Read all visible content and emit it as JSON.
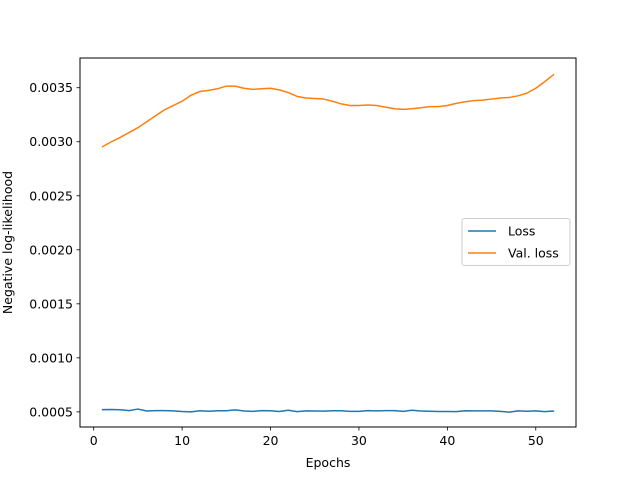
{
  "chart_data": {
    "type": "line",
    "title": "",
    "xlabel": "Epochs",
    "ylabel": "Negative log-likelihood",
    "xlim": [
      -1.55,
      54.55
    ],
    "ylim": [
      0.00036,
      0.003775
    ],
    "xticks": [
      0,
      10,
      20,
      30,
      40,
      50
    ],
    "yticks": [
      0.0005,
      0.001,
      0.0015,
      0.002,
      0.0025,
      0.003,
      0.0035
    ],
    "ytick_labels": [
      "0.0005",
      "0.0010",
      "0.0015",
      "0.0020",
      "0.0025",
      "0.0030",
      "0.0035"
    ],
    "grid": false,
    "legend_position": "center-right",
    "x": [
      1,
      2,
      3,
      4,
      5,
      6,
      7,
      8,
      9,
      10,
      11,
      12,
      13,
      14,
      15,
      16,
      17,
      18,
      19,
      20,
      21,
      22,
      23,
      24,
      25,
      26,
      27,
      28,
      29,
      30,
      31,
      32,
      33,
      34,
      35,
      36,
      37,
      38,
      39,
      40,
      41,
      42,
      43,
      44,
      45,
      46,
      47,
      48,
      49,
      50,
      51,
      52
    ],
    "series": [
      {
        "name": "Loss",
        "color": "#1f77b4",
        "values": [
          0.000521,
          0.000522,
          0.00052,
          0.000512,
          0.000526,
          0.000508,
          0.000512,
          0.000511,
          0.000509,
          0.000503,
          0.0005,
          0.00051,
          0.000506,
          0.00051,
          0.00051,
          0.000518,
          0.000508,
          0.000505,
          0.000512,
          0.00051,
          0.000503,
          0.000515,
          0.000502,
          0.000509,
          0.000508,
          0.000507,
          0.00051,
          0.00051,
          0.000505,
          0.000505,
          0.000511,
          0.000509,
          0.000511,
          0.000512,
          0.000505,
          0.000515,
          0.000508,
          0.000506,
          0.000504,
          0.000504,
          0.000502,
          0.00051,
          0.000509,
          0.000509,
          0.000509,
          0.000505,
          0.000498,
          0.000509,
          0.000506,
          0.000509,
          0.000502,
          0.000508
        ]
      },
      {
        "name": "Val. loss",
        "color": "#ff7f0e",
        "values": [
          0.002955,
          0.003,
          0.00304,
          0.003085,
          0.00313,
          0.003185,
          0.00324,
          0.003295,
          0.003335,
          0.003375,
          0.00343,
          0.003465,
          0.003475,
          0.00349,
          0.003515,
          0.003515,
          0.003495,
          0.003485,
          0.00349,
          0.003495,
          0.00348,
          0.003455,
          0.00342,
          0.003405,
          0.0034,
          0.003395,
          0.003375,
          0.00335,
          0.003335,
          0.003335,
          0.00334,
          0.003335,
          0.00332,
          0.003305,
          0.0033,
          0.003305,
          0.003315,
          0.003325,
          0.003325,
          0.003335,
          0.003355,
          0.00337,
          0.00338,
          0.003385,
          0.003395,
          0.003405,
          0.00341,
          0.003425,
          0.00345,
          0.003495,
          0.003555,
          0.00362
        ]
      }
    ]
  }
}
